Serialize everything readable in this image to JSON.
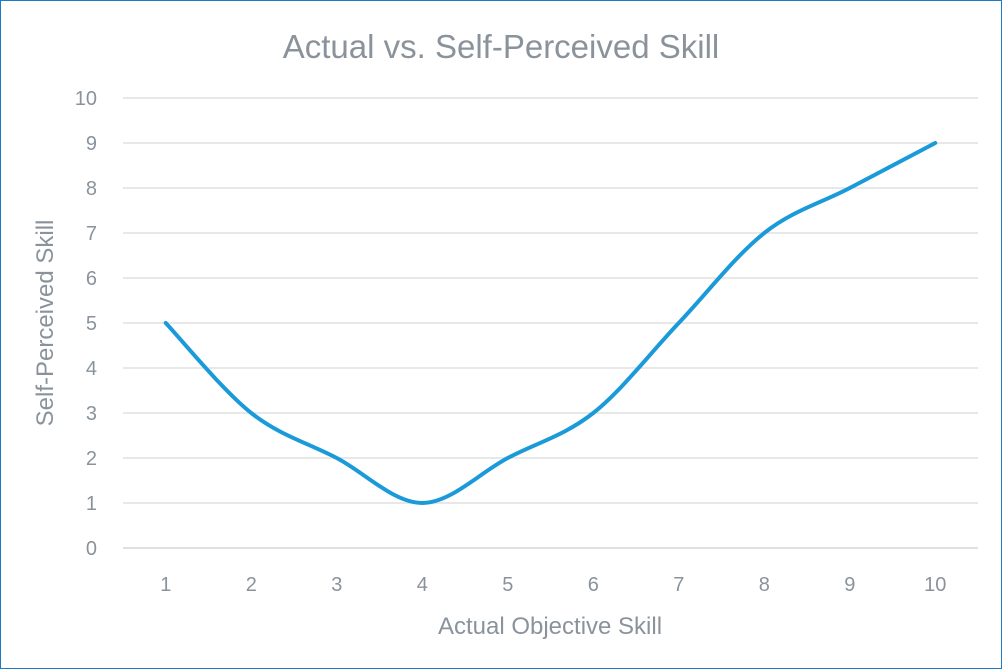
{
  "chart_data": {
    "type": "line",
    "title": "Actual vs. Self-Perceived Skill",
    "xlabel": "Actual Objective Skill",
    "ylabel": "Self-Perceived Skill",
    "x": [
      1,
      2,
      3,
      4,
      5,
      6,
      7,
      8,
      9,
      10
    ],
    "categories": [
      "1",
      "2",
      "3",
      "4",
      "5",
      "6",
      "7",
      "8",
      "9",
      "10"
    ],
    "series": [
      {
        "values": [
          5,
          3,
          2,
          1,
          2,
          3,
          5,
          7,
          8,
          9
        ],
        "color": "#1a9ad9"
      }
    ],
    "ylim": [
      0,
      10
    ],
    "yticks": [
      "0",
      "1",
      "2",
      "3",
      "4",
      "5",
      "6",
      "7",
      "8",
      "9",
      "10"
    ],
    "grid": true,
    "smooth": true,
    "frame_color": "#1f7ac4"
  }
}
